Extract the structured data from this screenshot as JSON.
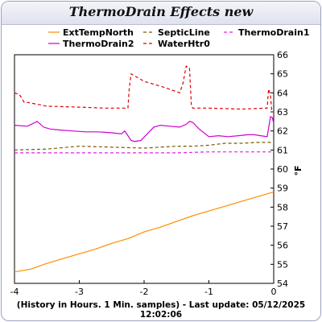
{
  "window": {
    "title": "ThermoDrain Effects new",
    "footer": "(History in Hours. 1 Min. samples) - Last update: 05/12/2025 12:02:06"
  },
  "chart_data": {
    "type": "line",
    "title": "ThermoDrain Effects new",
    "xlabel": "",
    "ylabel": "°F",
    "xlim": [
      -4,
      0
    ],
    "ylim": [
      54,
      66
    ],
    "xticks": [
      -4,
      -3,
      -2,
      -1,
      0
    ],
    "yticks": [
      54,
      55,
      56,
      57,
      58,
      59,
      60,
      61,
      62,
      63,
      64,
      65,
      66
    ],
    "y_axis_side": "right",
    "grid": false,
    "legend_position": "top",
    "series": [
      {
        "name": "ExtTempNorth",
        "color": "#ff8c00",
        "dash": "solid",
        "x": [
          -4.0,
          -3.75,
          -3.5,
          -3.25,
          -3.0,
          -2.75,
          -2.5,
          -2.25,
          -2.0,
          -1.75,
          -1.5,
          -1.25,
          -1.0,
          -0.75,
          -0.5,
          -0.25,
          0.0
        ],
        "y": [
          54.6,
          54.75,
          55.05,
          55.3,
          55.55,
          55.8,
          56.1,
          56.35,
          56.7,
          56.95,
          57.25,
          57.55,
          57.8,
          58.05,
          58.3,
          58.55,
          58.8
        ]
      },
      {
        "name": "SepticLine",
        "color": "#7a5a00",
        "dash": "dashed",
        "x": [
          -4.0,
          -3.5,
          -3.0,
          -2.5,
          -2.0,
          -1.75,
          -1.5,
          -1.25,
          -1.0,
          -0.75,
          -0.5,
          -0.25,
          0.0
        ],
        "y": [
          61.0,
          61.05,
          61.2,
          61.15,
          61.1,
          61.15,
          61.2,
          61.2,
          61.25,
          61.35,
          61.35,
          61.4,
          61.4
        ]
      },
      {
        "name": "ThermoDrain1",
        "color": "#e020e0",
        "dash": "dashed",
        "x": [
          -4.0,
          -3.5,
          -3.0,
          -2.5,
          -2.0,
          -1.5,
          -1.0,
          -0.5,
          0.0
        ],
        "y": [
          60.85,
          60.85,
          60.85,
          60.85,
          60.85,
          60.85,
          60.9,
          60.9,
          60.9
        ]
      },
      {
        "name": "ThermoDrain2",
        "color": "#cc00cc",
        "dash": "solid",
        "x": [
          -4.0,
          -3.8,
          -3.65,
          -3.55,
          -3.45,
          -3.3,
          -3.1,
          -2.9,
          -2.7,
          -2.5,
          -2.35,
          -2.3,
          -2.2,
          -2.15,
          -2.05,
          -1.95,
          -1.85,
          -1.75,
          -1.6,
          -1.45,
          -1.35,
          -1.3,
          -1.25,
          -1.15,
          -1.0,
          -0.85,
          -0.7,
          -0.55,
          -0.4,
          -0.3,
          -0.2,
          -0.1,
          -0.05,
          -0.02,
          0.0
        ],
        "y": [
          62.3,
          62.25,
          62.5,
          62.2,
          62.1,
          62.05,
          62.0,
          61.95,
          61.95,
          61.9,
          61.85,
          62.0,
          61.5,
          61.45,
          61.5,
          61.85,
          62.2,
          62.3,
          62.25,
          62.2,
          62.35,
          62.5,
          62.45,
          62.1,
          61.7,
          61.75,
          61.7,
          61.75,
          61.8,
          61.8,
          61.75,
          61.7,
          62.75,
          62.7,
          62.4
        ]
      },
      {
        "name": "WaterHtr0",
        "color": "#dd0000",
        "dash": "dashed",
        "x": [
          -4.0,
          -3.92,
          -3.85,
          -3.8,
          -3.5,
          -3.0,
          -2.6,
          -2.25,
          -2.23,
          -2.2,
          -2.1,
          -2.0,
          -1.7,
          -1.45,
          -1.4,
          -1.35,
          -1.3,
          -1.27,
          -1.25,
          -1.0,
          -0.5,
          -0.1,
          -0.08,
          -0.05,
          -0.03,
          0.0
        ],
        "y": [
          64.0,
          63.9,
          63.5,
          63.5,
          63.3,
          63.25,
          63.2,
          63.2,
          64.2,
          65.0,
          64.8,
          64.6,
          64.3,
          64.0,
          64.5,
          65.4,
          65.3,
          63.3,
          63.2,
          63.2,
          63.15,
          63.2,
          64.2,
          63.9,
          63.0,
          63.0
        ]
      }
    ]
  }
}
